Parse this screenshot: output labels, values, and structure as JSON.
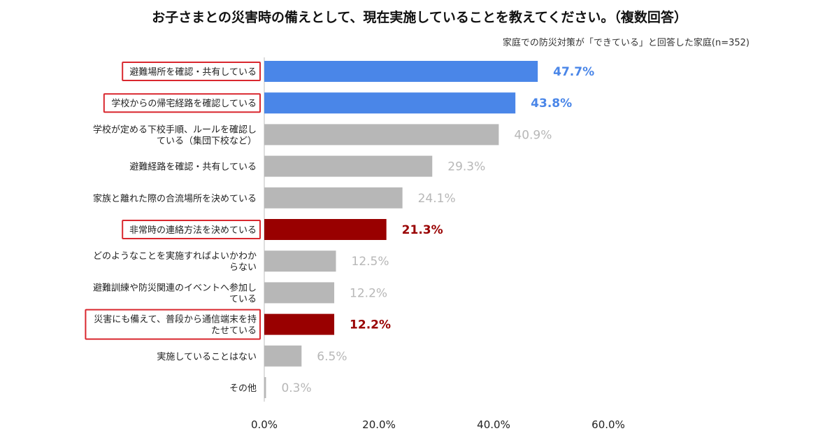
{
  "title": "お子さまとの災害時の備えとして、現在実施していることを教えてください。（複数回答）",
  "subtitle": "家庭での防災対策が「できている」と回答した家庭(n=352)",
  "colors": {
    "highlight_blue": "#4a86e8",
    "highlight_red": "#990000",
    "default_bar": "#b7b7b7",
    "default_value": "#b7b7b7",
    "box_border": "#d9272e"
  },
  "chart_data": {
    "type": "bar",
    "orientation": "horizontal",
    "xlim": [
      0,
      60
    ],
    "xticks": [
      "0.0%",
      "20.0%",
      "40.0%",
      "60.0%"
    ],
    "categories": [
      {
        "lines": [
          "避難場所を確認・共有している"
        ],
        "value": 47.7,
        "value_label": "47.7%",
        "style": "blue",
        "boxed": true
      },
      {
        "lines": [
          "学校からの帰宅経路を確認している"
        ],
        "value": 43.8,
        "value_label": "43.8%",
        "style": "blue",
        "boxed": true
      },
      {
        "lines": [
          "学校が定める下校手順、ルールを確認し",
          "ている（集団下校など）"
        ],
        "value": 40.9,
        "value_label": "40.9%",
        "style": "gray",
        "boxed": false
      },
      {
        "lines": [
          "避難経路を確認・共有している"
        ],
        "value": 29.3,
        "value_label": "29.3%",
        "style": "gray",
        "boxed": false
      },
      {
        "lines": [
          "家族と離れた際の合流場所を決めている"
        ],
        "value": 24.1,
        "value_label": "24.1%",
        "style": "gray",
        "boxed": false
      },
      {
        "lines": [
          "非常時の連絡方法を決めている"
        ],
        "value": 21.3,
        "value_label": "21.3%",
        "style": "red",
        "boxed": true
      },
      {
        "lines": [
          "どのようなことを実施すればよいかわか",
          "らない"
        ],
        "value": 12.5,
        "value_label": "12.5%",
        "style": "gray",
        "boxed": false
      },
      {
        "lines": [
          "避難訓練や防災関連のイベントへ参加し",
          "ている"
        ],
        "value": 12.2,
        "value_label": "12.2%",
        "style": "gray",
        "boxed": false
      },
      {
        "lines": [
          "災害にも備えて、普段から通信端末を持",
          "たせている"
        ],
        "value": 12.2,
        "value_label": "12.2%",
        "style": "red",
        "boxed": true
      },
      {
        "lines": [
          "実施していることはない"
        ],
        "value": 6.5,
        "value_label": "6.5%",
        "style": "gray",
        "boxed": false
      },
      {
        "lines": [
          "その他"
        ],
        "value": 0.3,
        "value_label": "0.3%",
        "style": "gray",
        "boxed": false
      }
    ]
  }
}
